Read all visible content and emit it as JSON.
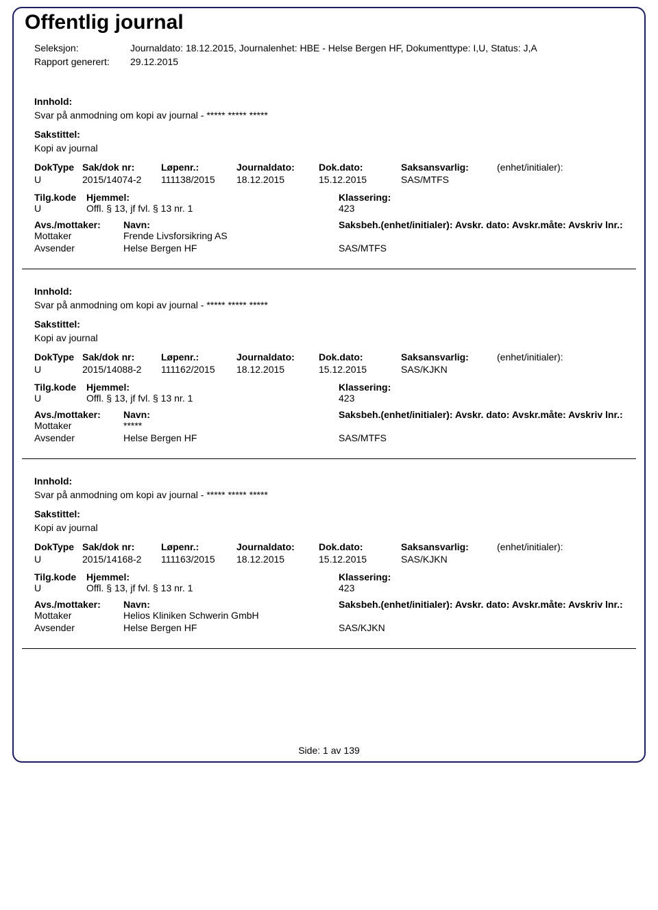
{
  "document": {
    "title": "Offentlig journal",
    "header": {
      "seleksjon_label": "Seleksjon:",
      "seleksjon_value": "Journaldato: 18.12.2015, Journalenhet: HBE - Helse Bergen HF, Dokumenttype: I,U, Status: J,A",
      "rapport_label": "Rapport generert:",
      "rapport_value": "29.12.2015"
    },
    "labels": {
      "innhold": "Innhold:",
      "sakstittel": "Sakstittel:",
      "doktype": "DokType",
      "sakdok": "Sak/dok nr:",
      "lopenr": "Løpenr.:",
      "journaldato": "Journaldato:",
      "dokdato": "Dok.dato:",
      "saksansvarlig": "Saksansvarlig:",
      "enhet_initialer": "(enhet/initialer):",
      "tilgkode": "Tilg.kode",
      "hjemmel": "Hjemmel:",
      "klassering": "Klassering:",
      "avsmottaker": "Avs./mottaker:",
      "navn": "Navn:",
      "saksbeh_line": "Saksbeh.(enhet/initialer): Avskr. dato: Avskr.måte: Avskriv lnr.:",
      "mottaker": "Mottaker",
      "avsender": "Avsender"
    },
    "entries": [
      {
        "innhold": "Svar på anmodning om kopi av journal - ***** ***** *****",
        "sakstittel": "Kopi av journal",
        "doktype": "U",
        "sakdok": "2015/14074-2",
        "lopenr": "111138/2015",
        "journaldato": "18.12.2015",
        "dokdato": "15.12.2015",
        "saksansvarlig": "SAS/MTFS",
        "tilgkode": "U",
        "hjemmel": "Offl. § 13, jf fvl. § 13 nr. 1",
        "klassering": "423",
        "mottaker_navn": "Frende Livsforsikring AS",
        "avsender_navn": "Helse Bergen HF",
        "avsender_saksbeh": "SAS/MTFS"
      },
      {
        "innhold": "Svar på anmodning om kopi av journal - ***** ***** *****",
        "sakstittel": "Kopi av journal",
        "doktype": "U",
        "sakdok": "2015/14088-2",
        "lopenr": "111162/2015",
        "journaldato": "18.12.2015",
        "dokdato": "15.12.2015",
        "saksansvarlig": "SAS/KJKN",
        "tilgkode": "U",
        "hjemmel": "Offl. § 13, jf fvl. § 13 nr. 1",
        "klassering": "423",
        "mottaker_navn": "*****",
        "avsender_navn": "Helse Bergen HF",
        "avsender_saksbeh": "SAS/MTFS"
      },
      {
        "innhold": "Svar på anmodning om kopi av journal - ***** ***** *****",
        "sakstittel": "Kopi av journal",
        "doktype": "U",
        "sakdok": "2015/14168-2",
        "lopenr": "111163/2015",
        "journaldato": "18.12.2015",
        "dokdato": "15.12.2015",
        "saksansvarlig": "SAS/KJKN",
        "tilgkode": "U",
        "hjemmel": "Offl. § 13, jf fvl. § 13 nr. 1",
        "klassering": "423",
        "mottaker_navn": "Helios Kliniken Schwerin GmbH",
        "avsender_navn": "Helse Bergen HF",
        "avsender_saksbeh": "SAS/KJKN"
      }
    ],
    "footer": {
      "side_label": "Side:",
      "page_current": "1",
      "page_sep": "av",
      "page_total": "139"
    }
  }
}
